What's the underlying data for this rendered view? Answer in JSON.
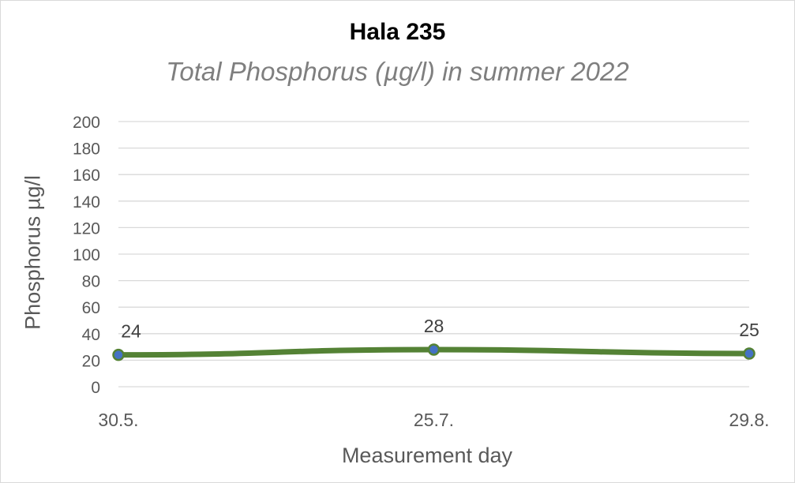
{
  "chart_data": {
    "type": "line",
    "title": "Hala 235",
    "subtitle": "Total Phosphorus (µg/l) in summer 2022",
    "xlabel": "Measurement day",
    "ylabel": "Phosphorus µg/l",
    "categories": [
      "30.5.",
      "25.7.",
      "29.8."
    ],
    "series": [
      {
        "values": [
          24,
          28,
          25
        ],
        "color": "#548235",
        "marker_color": "#4472c4"
      }
    ],
    "data_labels": [
      "24",
      "28",
      "25"
    ],
    "ylim": [
      0,
      200
    ],
    "yticks": [
      0,
      20,
      40,
      60,
      80,
      100,
      120,
      140,
      160,
      180,
      200
    ],
    "grid": true,
    "legend": "none"
  }
}
